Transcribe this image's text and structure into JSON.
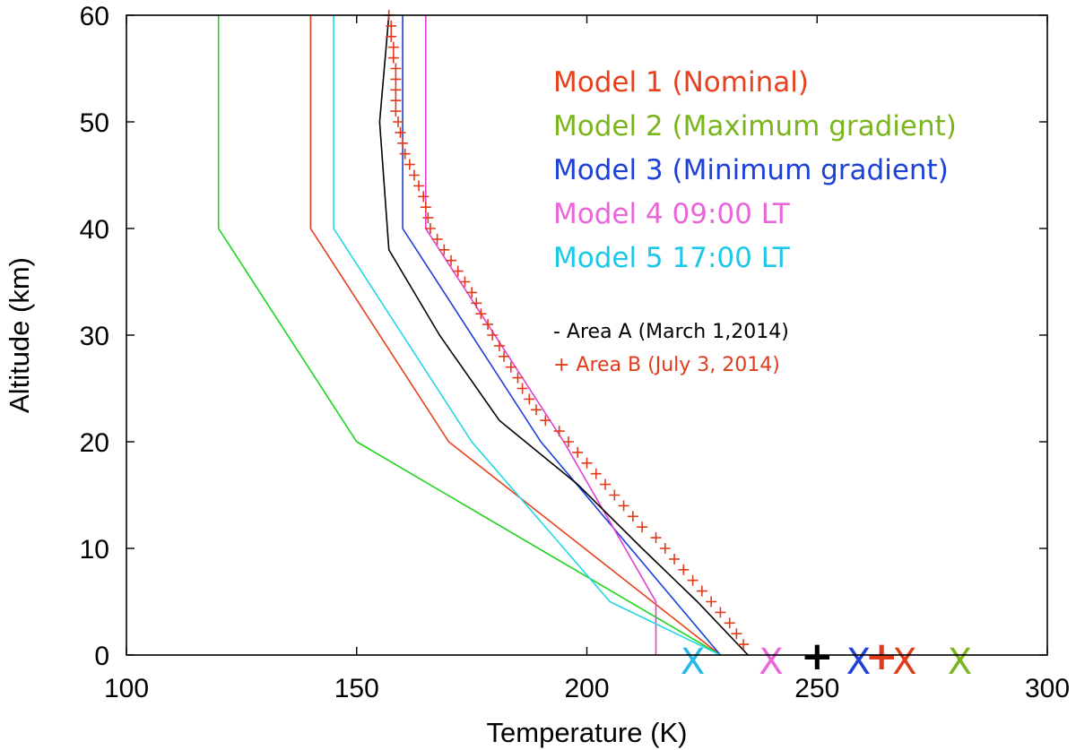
{
  "chart_data": {
    "type": "line",
    "title": "",
    "xlabel": "Temperature (K)",
    "ylabel": "Altitude (km)",
    "xlim": [
      100,
      300
    ],
    "ylim": [
      0,
      60
    ],
    "xticks": [
      100,
      150,
      200,
      250,
      300
    ],
    "yticks": [
      0,
      10,
      20,
      30,
      40,
      50,
      60
    ],
    "grid": false,
    "series": [
      {
        "name": "Model 1 (Nominal)",
        "color": "#e8401c",
        "style": "line",
        "points": [
          [
            229,
            0
          ],
          [
            170,
            20
          ],
          [
            140,
            40
          ],
          [
            140,
            60
          ]
        ]
      },
      {
        "name": "Model 2 (Maximum gradient)",
        "color": "#1fd41f",
        "legend_color": "#7ab51d",
        "style": "line",
        "points": [
          [
            229,
            0
          ],
          [
            150,
            20
          ],
          [
            120,
            40
          ],
          [
            120,
            60
          ]
        ]
      },
      {
        "name": "Model 3 (Minimum gradient)",
        "color": "#1c40d8",
        "style": "line",
        "points": [
          [
            229,
            0
          ],
          [
            190,
            20
          ],
          [
            160,
            40
          ],
          [
            160,
            60
          ]
        ]
      },
      {
        "name": "Model 4 09:00 LT",
        "color": "#e23fd8",
        "legend_color": "#ea65d9",
        "style": "line",
        "points": [
          [
            215,
            0
          ],
          [
            215,
            5
          ],
          [
            195,
            20
          ],
          [
            165,
            40
          ],
          [
            165,
            60
          ]
        ]
      },
      {
        "name": "Model 5 17:00 LT",
        "color": "#20d8e0",
        "legend_color": "#1cc8e8",
        "style": "line",
        "points": [
          [
            229,
            0
          ],
          [
            205,
            5
          ],
          [
            175,
            20
          ],
          [
            145,
            40
          ],
          [
            145,
            60
          ]
        ]
      },
      {
        "name": "Area A (March 1,2014)",
        "legend_label": "-  Area A (March 1,2014)",
        "color": "#000000",
        "style": "line",
        "points": [
          [
            235,
            0
          ],
          [
            224,
            5
          ],
          [
            212,
            10
          ],
          [
            198,
            16
          ],
          [
            181,
            22
          ],
          [
            168,
            30
          ],
          [
            157,
            38
          ],
          [
            155,
            50
          ],
          [
            157,
            60
          ]
        ]
      },
      {
        "name": "Area B (July 3, 2014)",
        "legend_label": "+ Area B  (July 3, 2014)",
        "color": "#e33a1b",
        "style": "plus",
        "points": [
          [
            234,
            1
          ],
          [
            232.5,
            2
          ],
          [
            231,
            3
          ],
          [
            229,
            4
          ],
          [
            227,
            5
          ],
          [
            225,
            6
          ],
          [
            223,
            7
          ],
          [
            221,
            8
          ],
          [
            219,
            9
          ],
          [
            217,
            10
          ],
          [
            215,
            11
          ],
          [
            212,
            12
          ],
          [
            210,
            13
          ],
          [
            208,
            14
          ],
          [
            206,
            15
          ],
          [
            204,
            16
          ],
          [
            202,
            17
          ],
          [
            200,
            18
          ],
          [
            198,
            19
          ],
          [
            196,
            20
          ],
          [
            194,
            21
          ],
          [
            191,
            22
          ],
          [
            189,
            23
          ],
          [
            187.5,
            24
          ],
          [
            186,
            25
          ],
          [
            185,
            26
          ],
          [
            183.5,
            27
          ],
          [
            182,
            28
          ],
          [
            181,
            29
          ],
          [
            179.5,
            30
          ],
          [
            178.5,
            31
          ],
          [
            177,
            32
          ],
          [
            176,
            33
          ],
          [
            175,
            34
          ],
          [
            173.5,
            35
          ],
          [
            172,
            36
          ],
          [
            170.5,
            37
          ],
          [
            169,
            38
          ],
          [
            167.5,
            39
          ],
          [
            166,
            40
          ],
          [
            165.5,
            41
          ],
          [
            165,
            42
          ],
          [
            164.5,
            43
          ],
          [
            163.5,
            44
          ],
          [
            162.5,
            45
          ],
          [
            161.5,
            46
          ],
          [
            160.5,
            47
          ],
          [
            160,
            48
          ],
          [
            159.5,
            49
          ],
          [
            159,
            50
          ],
          [
            158.5,
            51
          ],
          [
            158.5,
            52
          ],
          [
            158.5,
            53
          ],
          [
            158.5,
            54
          ],
          [
            158.5,
            55
          ],
          [
            158,
            56
          ],
          [
            158,
            57
          ],
          [
            157.5,
            58
          ],
          [
            157.5,
            59
          ],
          [
            157,
            60
          ]
        ]
      }
    ],
    "markers": [
      {
        "symbol": "X",
        "temperature": 223,
        "color": "#22b8e8"
      },
      {
        "symbol": "X",
        "temperature": 240,
        "color": "#ea65d9"
      },
      {
        "symbol": "+",
        "temperature": 250,
        "color": "#000000"
      },
      {
        "symbol": "X",
        "temperature": 259,
        "color": "#1c40d8"
      },
      {
        "symbol": "+",
        "temperature": 264,
        "color": "#e33a1b"
      },
      {
        "symbol": "X",
        "temperature": 269,
        "color": "#e33a1b"
      },
      {
        "symbol": "X",
        "temperature": 281,
        "color": "#7ab51d"
      }
    ]
  }
}
